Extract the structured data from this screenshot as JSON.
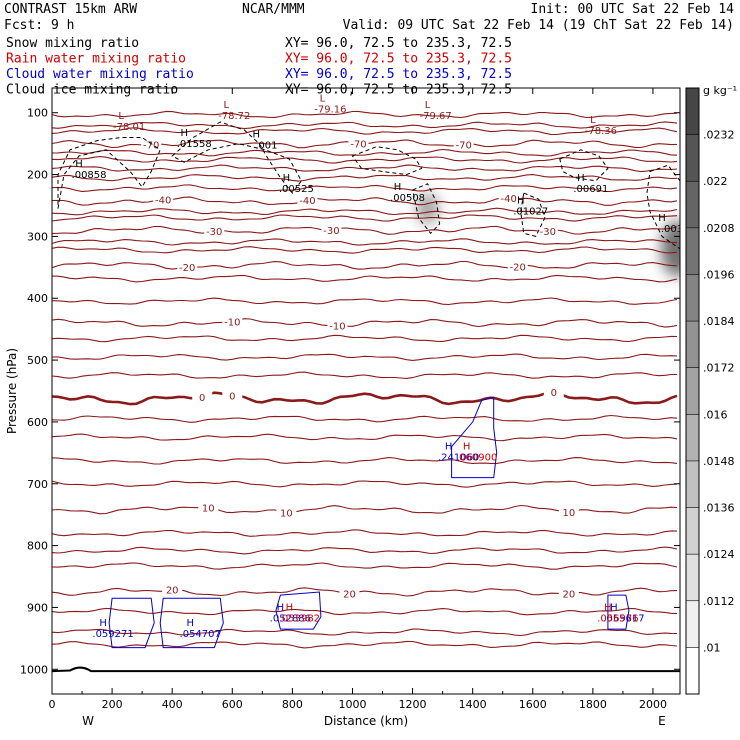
{
  "header": {
    "left1": "CONTRAST 15km ARW",
    "center1": "NCAR/MMM",
    "right1": "Init: 00 UTC Sat 22 Feb 14",
    "fcst": "Fcst:    9 h",
    "valid": "Valid: 09 UTC Sat 22 Feb 14 (19 ChT Sat 22 Feb 14)",
    "fields": [
      {
        "name": "Snow mixing ratio",
        "xy": "XY=  96.0, 72.5 to 235.3, 72.5",
        "color": "#000000"
      },
      {
        "name": "Rain water mixing ratio",
        "xy": "XY=  96.0, 72.5 to 235.3, 72.5",
        "color": "#d00000"
      },
      {
        "name": "Cloud water mixing ratio",
        "xy": "XY=  96.0, 72.5 to 235.3, 72.5",
        "color": "#0000cc"
      },
      {
        "name": "Cloud ice mixing ratio",
        "xy": "XY=  96.0, 72.5 to 235.3, 72.5",
        "color": "#000000"
      }
    ]
  },
  "colors": {
    "temp": "#8b1a1a",
    "rain": "#cc0000",
    "cloud_water": "#0000cc",
    "ice": "#000000"
  },
  "chart_data": {
    "type": "contour",
    "xlabel": "Distance (km)",
    "ylabel": "Pressure (hPa)",
    "xlim": [
      0,
      2090
    ],
    "ylim": [
      1040,
      60
    ],
    "x_ticks": [
      0,
      200,
      400,
      600,
      800,
      1000,
      1200,
      1400,
      1600,
      1800,
      2000
    ],
    "y_ticks": [
      100,
      200,
      300,
      400,
      500,
      600,
      700,
      800,
      900,
      1000
    ],
    "endpoints": {
      "left": "W",
      "right": "E",
      "left_x": 120,
      "right_x": 2030
    },
    "colorbar": {
      "unit": "g kg⁻¹",
      "labels": [
        ".0232",
        ".022",
        ".0208",
        ".0196",
        ".0184",
        ".0172",
        ".016",
        ".0148",
        ".0136",
        ".0124",
        ".0112",
        ".01"
      ]
    },
    "temperature_contours": [
      {
        "label": "-70",
        "p": 150,
        "label_x": [
          330,
          1020,
          1370
        ]
      },
      {
        "label": "-40",
        "p": 243,
        "label_x": [
          370,
          850,
          1520
        ]
      },
      {
        "label": "-30",
        "p": 290,
        "label_x": [
          540,
          930,
          1650
        ]
      },
      {
        "label": "-20",
        "p": 347,
        "label_x": [
          450,
          1550
        ]
      },
      {
        "label": "-10",
        "p": 440,
        "label_x": [
          600,
          950
        ]
      },
      {
        "label": "0",
        "p": 562,
        "label_x": [
          500,
          600,
          1670
        ]
      },
      {
        "label": "10",
        "p": 742,
        "label_x": [
          520,
          780,
          1720
        ]
      },
      {
        "label": "20",
        "p": 875,
        "label_x": [
          400,
          990,
          1720
        ]
      }
    ],
    "isolines_unlabeled_p": [
      103,
      120,
      130,
      165,
      176,
      190,
      205,
      222,
      260,
      270,
      309,
      322,
      368,
      405,
      465,
      495,
      525,
      595,
      625,
      663,
      700,
      780,
      808,
      833,
      907,
      940,
      960
    ],
    "temperature_extrema": [
      {
        "type": "L",
        "value": "-78.01",
        "x": 230,
        "p": 110
      },
      {
        "type": "L",
        "value": "-78.72",
        "x": 580,
        "p": 92
      },
      {
        "type": "L",
        "value": "-79.16",
        "x": 900,
        "p": 82
      },
      {
        "type": "L",
        "value": "-79.67",
        "x": 1250,
        "p": 92
      },
      {
        "type": "L",
        "value": "-78.36",
        "x": 1800,
        "p": 117
      }
    ],
    "cloud_ice_maxima": [
      {
        "type": "H",
        "value": ".00858",
        "x": 90,
        "p": 188
      },
      {
        "type": "H",
        "value": ".01558",
        "x": 440,
        "p": 138
      },
      {
        "type": "H",
        "value": ".001",
        "x": 680,
        "p": 140
      },
      {
        "type": "H",
        "value": ".00525",
        "x": 780,
        "p": 210
      },
      {
        "type": "H",
        "value": ".00508",
        "x": 1150,
        "p": 225
      },
      {
        "type": "H",
        "value": ".01027",
        "x": 1560,
        "p": 247
      },
      {
        "type": "H",
        "value": ".00691",
        "x": 1760,
        "p": 210
      },
      {
        "type": "H",
        "value": ".003",
        "x": 2030,
        "p": 275
      }
    ],
    "cloud_water_maxima": [
      {
        "type": "H",
        "value": ".059271",
        "x": 170,
        "p": 930
      },
      {
        "type": "H",
        "value": ".054707",
        "x": 460,
        "p": 930
      },
      {
        "type": "H",
        "value": ".052886",
        "x": 760,
        "p": 905
      },
      {
        "type": "H",
        "value": ".241060",
        "x": 1320,
        "p": 645
      },
      {
        "type": "H",
        "value": ".055617",
        "x": 1870,
        "p": 905
      }
    ],
    "rain_maxima": [
      {
        "type": "H",
        "value": ".053982",
        "x": 790,
        "p": 905
      },
      {
        "type": "H",
        "value": ".060900",
        "x": 1380,
        "p": 645
      },
      {
        "type": "H",
        "value": ".056976",
        "x": 1850,
        "p": 905
      }
    ]
  }
}
